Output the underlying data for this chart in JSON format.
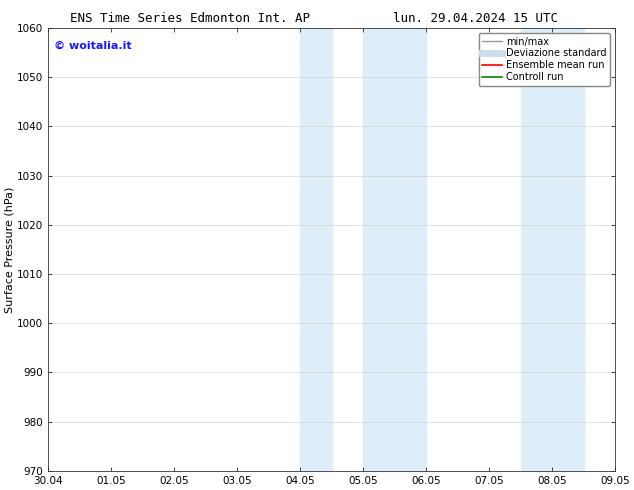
{
  "title_left": "ENS Time Series Edmonton Int. AP",
  "title_right": "lun. 29.04.2024 15 UTC",
  "ylabel": "Surface Pressure (hPa)",
  "ylim": [
    970,
    1060
  ],
  "yticks": [
    970,
    980,
    990,
    1000,
    1010,
    1020,
    1030,
    1040,
    1050,
    1060
  ],
  "xtick_labels": [
    "30.04",
    "01.05",
    "02.05",
    "03.05",
    "04.05",
    "05.05",
    "06.05",
    "07.05",
    "08.05",
    "09.05"
  ],
  "background_color": "#ffffff",
  "plot_bg_color": "#ffffff",
  "watermark_text": "© woitalia.it",
  "watermark_color": "#1a1aff",
  "shaded_regions": [
    {
      "xstart": 4.0,
      "xend": 4.5,
      "color": "#ddeef8"
    },
    {
      "xstart": 5.0,
      "xend": 6.0,
      "color": "#ddeef8"
    },
    {
      "xstart": 7.5,
      "xend": 8.5,
      "color": "#ddeef8"
    }
  ],
  "legend_entries": [
    {
      "label": "min/max",
      "color": "#999999",
      "lw": 1.0,
      "style": "solid"
    },
    {
      "label": "Deviazione standard",
      "color": "#ccddee",
      "lw": 5,
      "style": "solid"
    },
    {
      "label": "Ensemble mean run",
      "color": "#ff0000",
      "lw": 1.2,
      "style": "solid"
    },
    {
      "label": "Controll run",
      "color": "#008800",
      "lw": 1.2,
      "style": "solid"
    }
  ],
  "grid_color": "#cccccc",
  "title_fontsize": 9,
  "tick_fontsize": 7.5,
  "ylabel_fontsize": 8,
  "legend_fontsize": 7
}
